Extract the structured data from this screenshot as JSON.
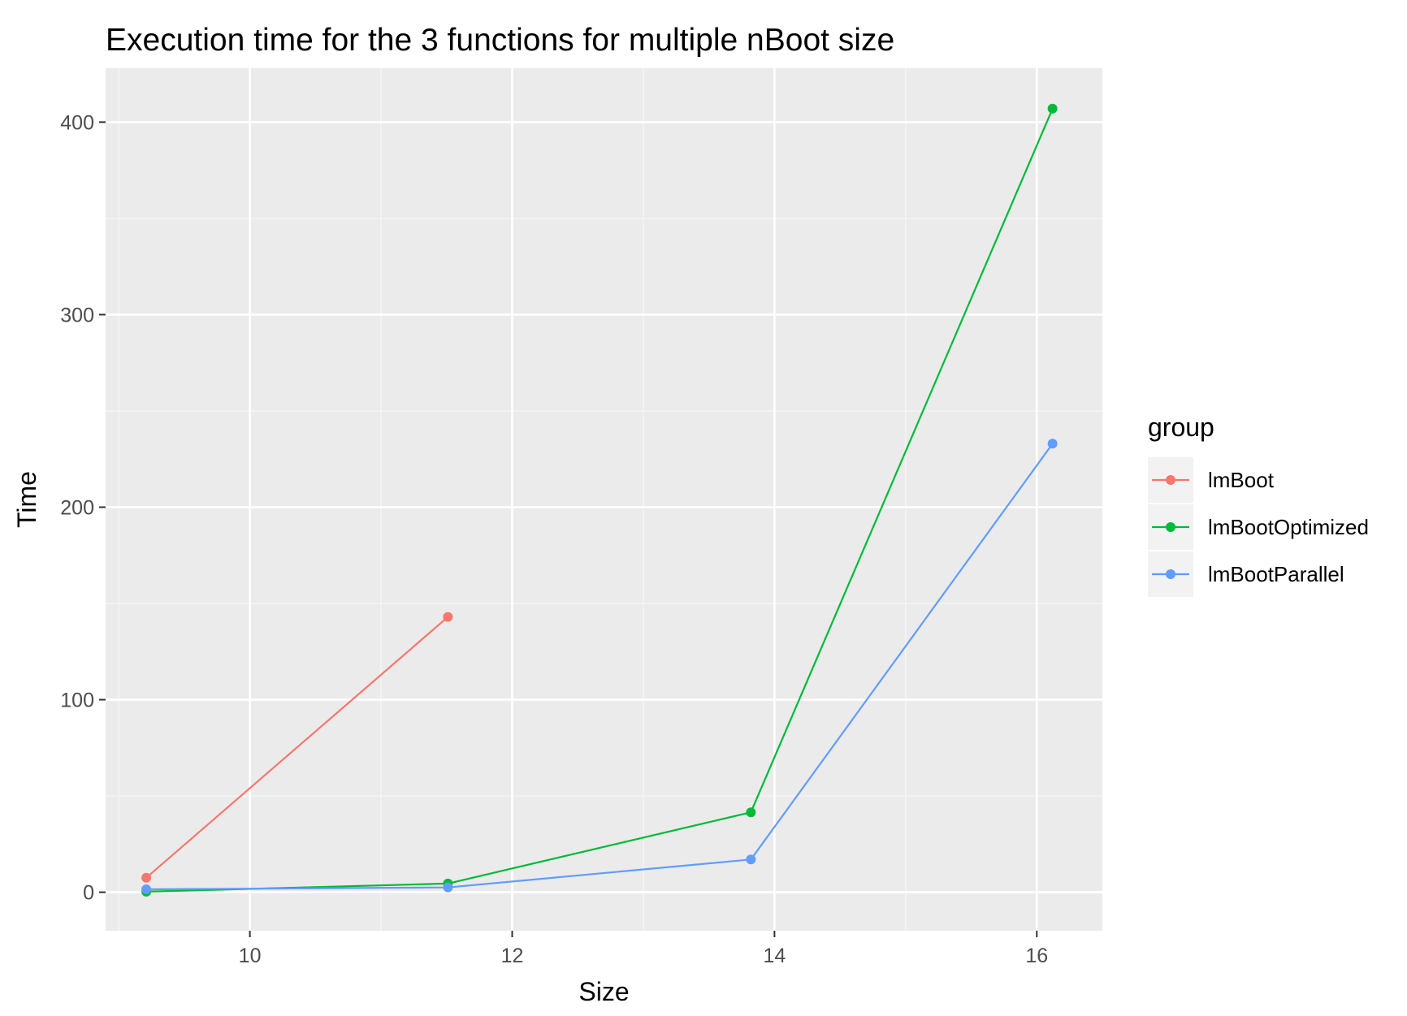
{
  "chart_data": {
    "type": "line",
    "title": "Execution time for the 3 functions for multiple nBoot size",
    "xlabel": "Size",
    "ylabel": "Time",
    "xlim": [
      8.9,
      16.5
    ],
    "ylim": [
      -20,
      428
    ],
    "x_ticks": [
      10,
      12,
      14,
      16
    ],
    "x_tick_labels": [
      "10",
      "12",
      "14",
      "16"
    ],
    "x_minor_ticks": [
      9,
      11,
      13,
      15
    ],
    "y_ticks": [
      0,
      100,
      200,
      300,
      400
    ],
    "y_tick_labels": [
      "0",
      "100",
      "200",
      "300",
      "400"
    ],
    "y_minor_ticks": [
      50,
      150,
      250,
      350
    ],
    "grid": true,
    "markers": true,
    "legend": {
      "title": "group",
      "position": "right"
    },
    "series": [
      {
        "name": "lmBoot",
        "color": "#F8766D",
        "points": [
          {
            "x": 9.21,
            "y": 7.5
          },
          {
            "x": 11.51,
            "y": 143
          }
        ]
      },
      {
        "name": "lmBootOptimized",
        "color": "#00BA38",
        "points": [
          {
            "x": 9.21,
            "y": 0.3
          },
          {
            "x": 11.51,
            "y": 4.5
          },
          {
            "x": 13.82,
            "y": 41.5
          },
          {
            "x": 16.12,
            "y": 407
          }
        ]
      },
      {
        "name": "lmBootParallel",
        "color": "#619CFF",
        "points": [
          {
            "x": 9.21,
            "y": 1.5
          },
          {
            "x": 11.51,
            "y": 2.5
          },
          {
            "x": 13.82,
            "y": 17
          },
          {
            "x": 16.12,
            "y": 233
          }
        ]
      }
    ]
  },
  "theme": {
    "panel_background": "#EBEBEB",
    "major_grid_color": "#FFFFFF",
    "minor_grid_color": "#F5F5F5"
  }
}
